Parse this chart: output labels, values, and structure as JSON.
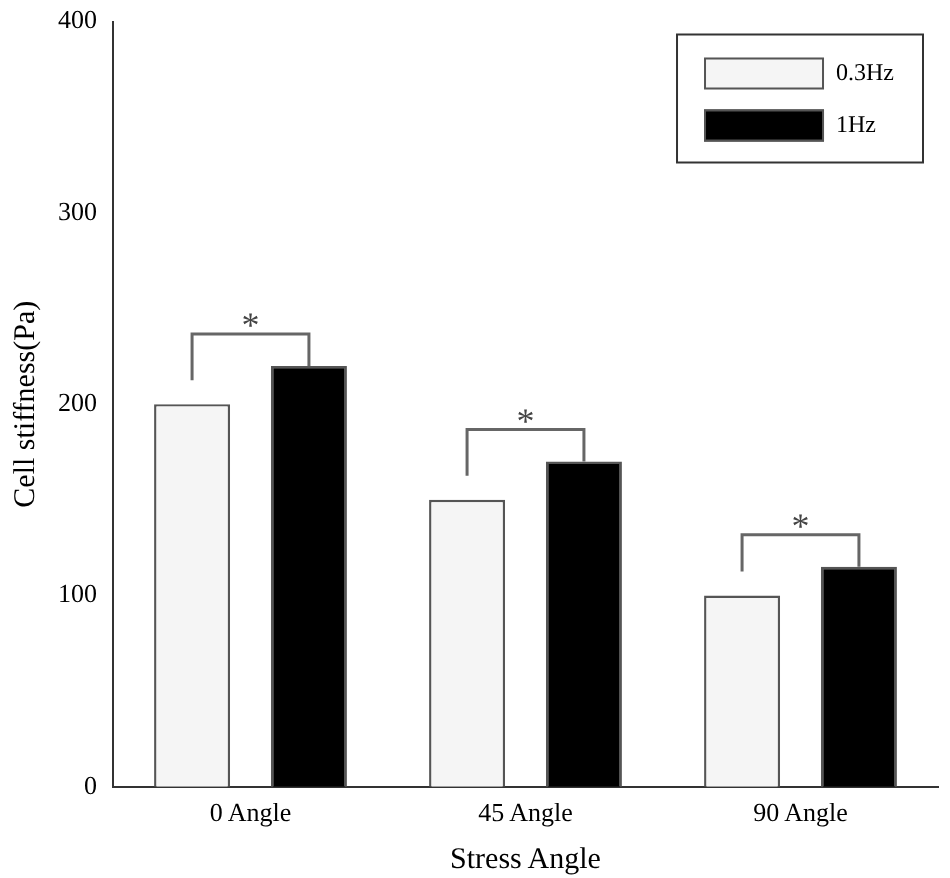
{
  "chart_data": {
    "type": "bar",
    "xlabel": "Stress Angle",
    "ylabel": "Cell stiffness(Pa)",
    "categories": [
      "0 Angle",
      "45 Angle",
      "90 Angle"
    ],
    "series": [
      {
        "name": "0.3Hz",
        "color": "#f5f5f5",
        "values": [
          200,
          150,
          100
        ]
      },
      {
        "name": "1Hz",
        "color": "#000000",
        "values": [
          220,
          170,
          115
        ]
      }
    ],
    "ylim": [
      0,
      400
    ],
    "yticks": [
      0,
      100,
      200,
      300,
      400
    ],
    "grid": false,
    "legend": "top right",
    "annotations": [
      "*",
      "*",
      "*"
    ]
  }
}
